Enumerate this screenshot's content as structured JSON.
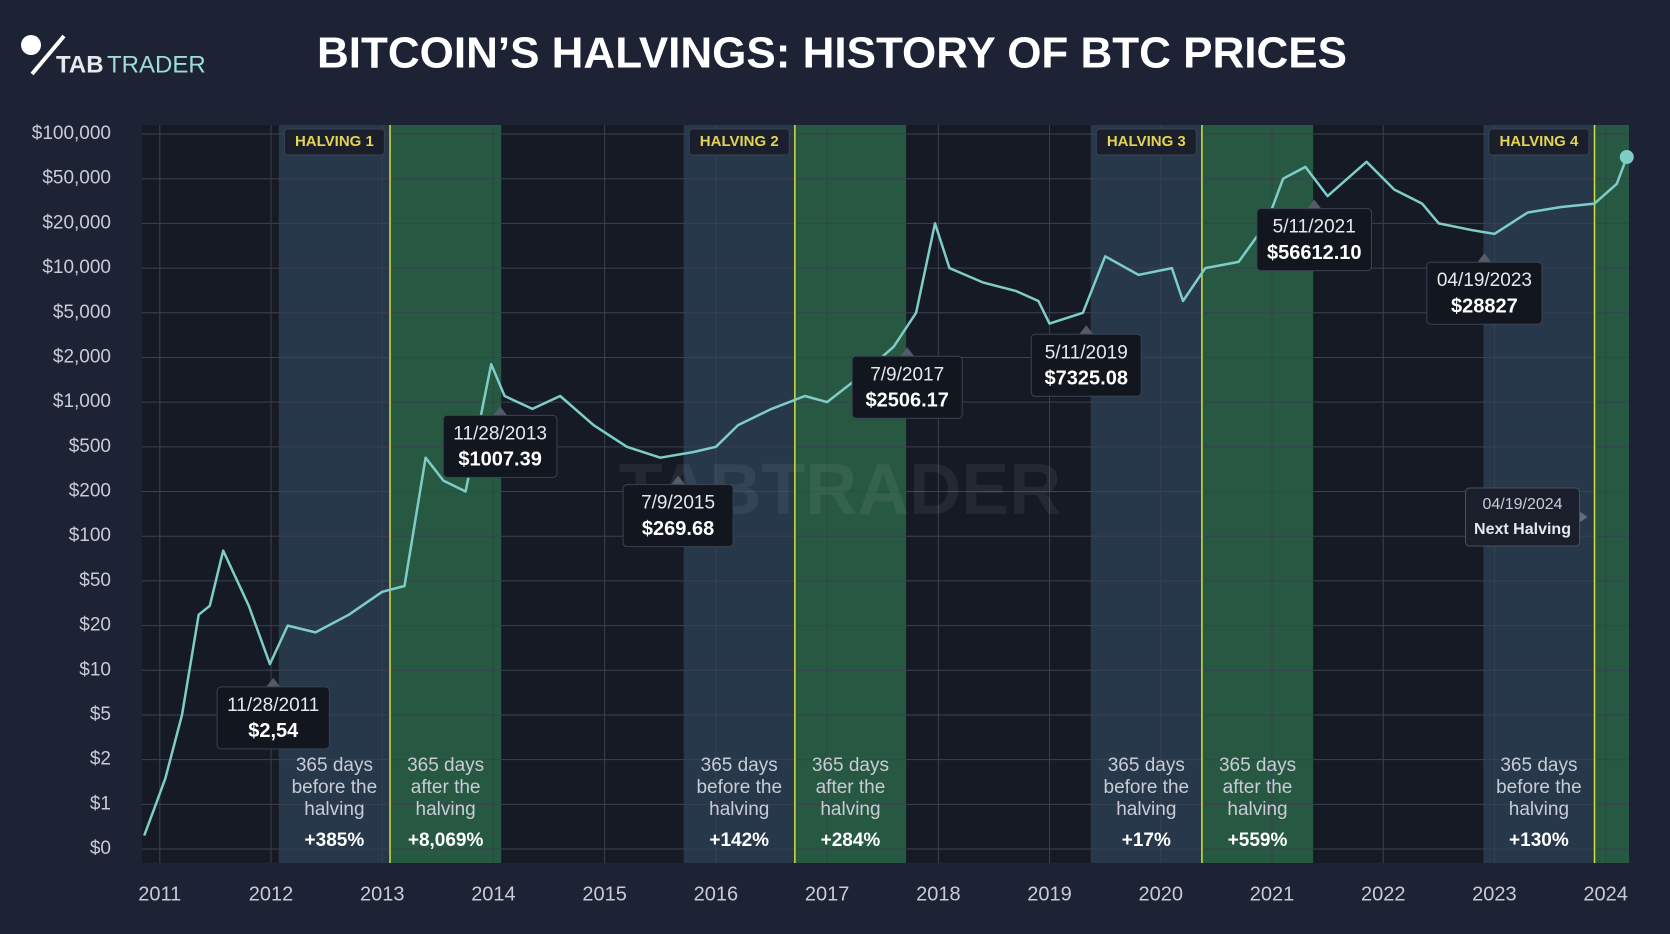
{
  "logo": {
    "part1": "TAB",
    "part2": "TRADER"
  },
  "chart_data": {
    "type": "line",
    "title": "BITCOIN’S HALVINGS: HISTORY OF BTC PRICES",
    "watermark": "TABTRADER",
    "log_scale": true,
    "grid": true,
    "color": "#7ecdc6",
    "xlim": [
      2010.84,
      2024.21
    ],
    "xticks": [
      2011,
      2012,
      2013,
      2014,
      2015,
      2016,
      2017,
      2018,
      2019,
      2020,
      2021,
      2022,
      2023,
      2024
    ],
    "ylim": [
      0,
      100000
    ],
    "yticks": [
      {
        "value": 0,
        "label": "$0"
      },
      {
        "value": 1,
        "label": "$1"
      },
      {
        "value": 2,
        "label": "$2"
      },
      {
        "value": 5,
        "label": "$5"
      },
      {
        "value": 10,
        "label": "$10"
      },
      {
        "value": 20,
        "label": "$20"
      },
      {
        "value": 50,
        "label": "$50"
      },
      {
        "value": 100,
        "label": "$100"
      },
      {
        "value": 200,
        "label": "$200"
      },
      {
        "value": 500,
        "label": "$500"
      },
      {
        "value": 1000,
        "label": "$1,000"
      },
      {
        "value": 2000,
        "label": "$2,000"
      },
      {
        "value": 5000,
        "label": "$5,000"
      },
      {
        "value": 10000,
        "label": "$10,000"
      },
      {
        "value": 20000,
        "label": "$20,000"
      },
      {
        "value": 50000,
        "label": "$50,000"
      },
      {
        "value": 100000,
        "label": "$100,000"
      }
    ],
    "x": [
      2010.86,
      2010.95,
      2011.05,
      2011.2,
      2011.35,
      2011.45,
      2011.57,
      2011.8,
      2011.99,
      2012.15,
      2012.4,
      2012.7,
      2013.0,
      2013.2,
      2013.39,
      2013.55,
      2013.75,
      2013.98,
      2014.1,
      2014.35,
      2014.6,
      2014.9,
      2015.2,
      2015.5,
      2015.8,
      2016.0,
      2016.2,
      2016.5,
      2016.8,
      2017.0,
      2017.3,
      2017.6,
      2017.8,
      2017.97,
      2018.1,
      2018.4,
      2018.7,
      2018.9,
      2019.0,
      2019.3,
      2019.5,
      2019.8,
      2020.1,
      2020.2,
      2020.4,
      2020.7,
      2020.95,
      2021.1,
      2021.3,
      2021.5,
      2021.85,
      2022.1,
      2022.35,
      2022.5,
      2022.8,
      2023.0,
      2023.3,
      2023.6,
      2023.9,
      2024.1,
      2024.19
    ],
    "values": [
      0.3,
      0.9,
      1.5,
      5,
      25,
      30,
      80,
      30,
      11,
      20,
      18,
      25,
      40,
      45,
      400,
      250,
      200,
      1800,
      1100,
      900,
      1100,
      700,
      500,
      400,
      450,
      500,
      700,
      900,
      1100,
      1000,
      1500,
      2500,
      5000,
      20000,
      10000,
      8000,
      7000,
      6000,
      4000,
      5000,
      12000,
      9000,
      10000,
      6000,
      10000,
      11000,
      20000,
      50000,
      60000,
      35000,
      65000,
      40000,
      30000,
      20000,
      18000,
      17000,
      25000,
      28000,
      30000,
      45000,
      70000
    ],
    "halvings": [
      {
        "label": "HALVING 1",
        "x": 2013.07,
        "before": {
          "text": [
            "365 days",
            "before the",
            "halving"
          ],
          "change": "+385%"
        },
        "after": {
          "text": [
            "365 days",
            "after the",
            "halving"
          ],
          "change": "+8,069%"
        }
      },
      {
        "label": "HALVING 2",
        "x": 2016.71,
        "before": {
          "text": [
            "365 days",
            "before the",
            "halving"
          ],
          "change": "+142%"
        },
        "after": {
          "text": [
            "365 days",
            "after the",
            "halving"
          ],
          "change": "+284%"
        }
      },
      {
        "label": "HALVING 3",
        "x": 2020.37,
        "before": {
          "text": [
            "365 days",
            "before the",
            "halving"
          ],
          "change": "+17%"
        },
        "after": {
          "text": [
            "365 days",
            "after the",
            "halving"
          ],
          "change": "+559%"
        }
      },
      {
        "label": "HALVING 4",
        "x": 2023.9,
        "before": {
          "text": [
            "365 days",
            "before the",
            "halving"
          ],
          "change": "+130%"
        }
      }
    ],
    "annotations": [
      {
        "x": 2012.02,
        "date": "11/28/2011",
        "price": "$2,54"
      },
      {
        "x": 2014.06,
        "date": "11/28/2013",
        "price": "$1007.39"
      },
      {
        "x": 2015.66,
        "date": "7/9/2015",
        "price": "$269.68"
      },
      {
        "x": 2017.72,
        "date": "7/9/2017",
        "price": "$2506.17"
      },
      {
        "x": 2019.33,
        "date": "5/11/2019",
        "price": "$7325.08"
      },
      {
        "x": 2021.38,
        "date": "5/11/2021",
        "price": "$56612.10"
      },
      {
        "x": 2022.91,
        "date": "04/19/2023",
        "price": "$28827"
      }
    ],
    "next_halving": {
      "date": "04/19/2024",
      "label": "Next Halving"
    }
  }
}
